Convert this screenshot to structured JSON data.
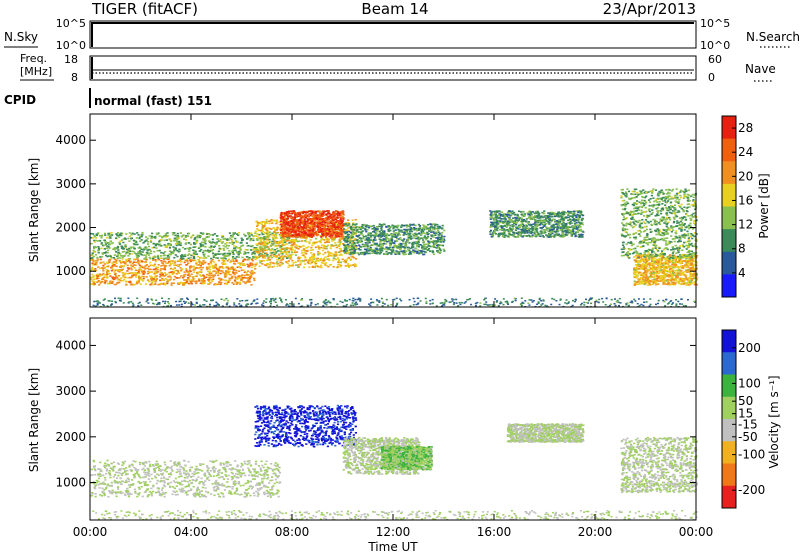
{
  "header": {
    "radar": "TIGER (fitACF)",
    "beam": "Beam 14",
    "date": "23/Apr/2013"
  },
  "strips": {
    "nsky": {
      "label": "N.Sky",
      "ticks": [
        "10^5",
        "10^0"
      ]
    },
    "nsearch": {
      "label": "N.Search",
      "ticks": [
        "10^5",
        "10^0"
      ]
    },
    "freq": {
      "label_line1": "Freq.",
      "label_line2": "[MHz]",
      "ticks": [
        "18",
        "8"
      ]
    },
    "nave": {
      "label": "Nave",
      "ticks": [
        "60",
        "0"
      ]
    },
    "cpid": {
      "label": "CPID",
      "value": "normal (fast) 151"
    }
  },
  "colors": {
    "power_scale": [
      "#1a1aff",
      "#2a5a9c",
      "#3a8a5a",
      "#8ac050",
      "#e8d020",
      "#f09020",
      "#f06010",
      "#e82010"
    ],
    "velocity_scale": [
      "#1212d8",
      "#2a6ad0",
      "#3cb33c",
      "#a0d060",
      "#c0c0c0",
      "#f0b020",
      "#f07818",
      "#e82020"
    ]
  },
  "chart_data": [
    {
      "type": "heatmap",
      "name": "power",
      "ylabel": "Slant Range [km]",
      "xlabel": "",
      "xlim": [
        "00:00",
        "24:00"
      ],
      "ylim": [
        180,
        4600
      ],
      "x_ticks": [
        "00:00",
        "04:00",
        "08:00",
        "12:00",
        "16:00",
        "20:00",
        "00:00"
      ],
      "y_ticks": [
        1000,
        2000,
        3000,
        4000
      ],
      "colorbar": {
        "label": "Power [dB]",
        "ticks": [
          4,
          8,
          12,
          16,
          20,
          24,
          28
        ],
        "range": [
          0,
          30
        ]
      },
      "echo_regions": [
        {
          "t_start": 0.0,
          "t_end": 6.5,
          "range_km": [
            700,
            1300
          ],
          "value": 20
        },
        {
          "t_start": 0.0,
          "t_end": 8.0,
          "range_km": [
            1300,
            1900
          ],
          "value": 12
        },
        {
          "t_start": 6.5,
          "t_end": 10.5,
          "range_km": [
            1100,
            2200
          ],
          "value": 18
        },
        {
          "t_start": 7.5,
          "t_end": 10.0,
          "range_km": [
            1800,
            2400
          ],
          "value": 26
        },
        {
          "t_start": 10.0,
          "t_end": 14.0,
          "range_km": [
            1400,
            2100
          ],
          "value": 10
        },
        {
          "t_start": 15.8,
          "t_end": 19.5,
          "range_km": [
            1800,
            2400
          ],
          "value": 10
        },
        {
          "t_start": 21.5,
          "t_end": 24.0,
          "range_km": [
            700,
            1400
          ],
          "value": 18
        },
        {
          "t_start": 21.0,
          "t_end": 24.0,
          "range_km": [
            1300,
            2900
          ],
          "value": 12
        }
      ]
    },
    {
      "type": "heatmap",
      "name": "velocity",
      "ylabel": "Slant Range [km]",
      "xlabel": "Time UT",
      "xlim": [
        "00:00",
        "24:00"
      ],
      "ylim": [
        180,
        4600
      ],
      "x_ticks": [
        "00:00",
        "04:00",
        "08:00",
        "12:00",
        "16:00",
        "20:00",
        "00:00"
      ],
      "y_ticks": [
        1000,
        2000,
        3000,
        4000
      ],
      "colorbar": {
        "label": "Velocity [m s⁻¹]",
        "ticks": [
          200,
          100,
          50,
          15,
          -15,
          -50,
          -100,
          -200
        ],
        "range": [
          -250,
          250
        ]
      },
      "echo_regions": [
        {
          "t_start": 0.0,
          "t_end": 7.5,
          "range_km": [
            700,
            1500
          ],
          "value": 0
        },
        {
          "t_start": 6.5,
          "t_end": 10.5,
          "range_km": [
            1800,
            2700
          ],
          "value": 220
        },
        {
          "t_start": 10.0,
          "t_end": 13.0,
          "range_km": [
            1200,
            2000
          ],
          "value": 0
        },
        {
          "t_start": 11.5,
          "t_end": 13.5,
          "range_km": [
            1300,
            1800
          ],
          "value": 50
        },
        {
          "t_start": 16.5,
          "t_end": 19.5,
          "range_km": [
            1900,
            2300
          ],
          "value": 0
        },
        {
          "t_start": 21.0,
          "t_end": 24.0,
          "range_km": [
            800,
            2000
          ],
          "value": 0
        }
      ]
    }
  ]
}
